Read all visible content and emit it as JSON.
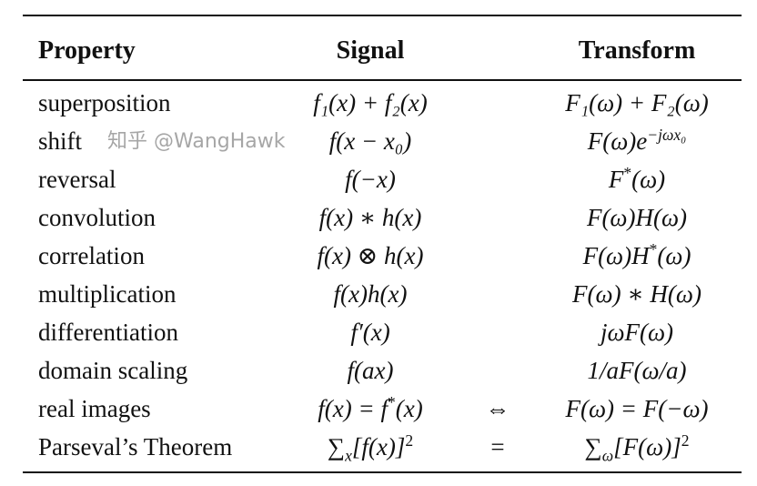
{
  "header": {
    "property": "Property",
    "signal": "Signal",
    "transform": "Transform"
  },
  "rows": [
    {
      "property": "superposition",
      "signal": [
        "f₁(x) + f₂(x)"
      ],
      "relation": "",
      "transform": [
        "F₁(ω) + F₂(ω)"
      ]
    },
    {
      "property": "shift",
      "signal": [
        "f(x − x₀)"
      ],
      "relation": "",
      "transform": [
        "F(ω)e",
        "−jωx₀"
      ]
    },
    {
      "property": "reversal",
      "signal": [
        "f(−x)"
      ],
      "relation": "",
      "transform": [
        "F",
        "*",
        "(ω)"
      ]
    },
    {
      "property": "convolution",
      "signal": [
        "f(x) ∗ h(x)"
      ],
      "relation": "",
      "transform": [
        "F(ω)H(ω)"
      ]
    },
    {
      "property": "correlation",
      "signal": [
        "f(x) ⊗ h(x)"
      ],
      "relation": "",
      "transform": [
        "F(ω)H",
        "*",
        "(ω)"
      ]
    },
    {
      "property": "multiplication",
      "signal": [
        "f(x)h(x)"
      ],
      "relation": "",
      "transform": [
        "F(ω) ∗ H(ω)"
      ]
    },
    {
      "property": "differentiation",
      "signal": [
        "f′(x)"
      ],
      "relation": "",
      "transform": [
        "jωF(ω)"
      ]
    },
    {
      "property": "domain scaling",
      "signal": [
        "f(ax)"
      ],
      "relation": "",
      "transform": [
        "1/aF(ω/a)"
      ]
    },
    {
      "property": "real images",
      "signal": [
        "f(x) = f",
        "*",
        "(x)"
      ],
      "relation": "⇔",
      "transform": [
        "F(ω) = F(−ω)"
      ]
    },
    {
      "property": "Parseval’s Theorem",
      "signal": [
        "∑",
        "x",
        "[f(x)]",
        "2"
      ],
      "relation": "=",
      "transform": [
        "∑",
        "ω",
        "[F(ω)]",
        "2"
      ]
    }
  ],
  "watermark": "知乎 @WangHawk"
}
